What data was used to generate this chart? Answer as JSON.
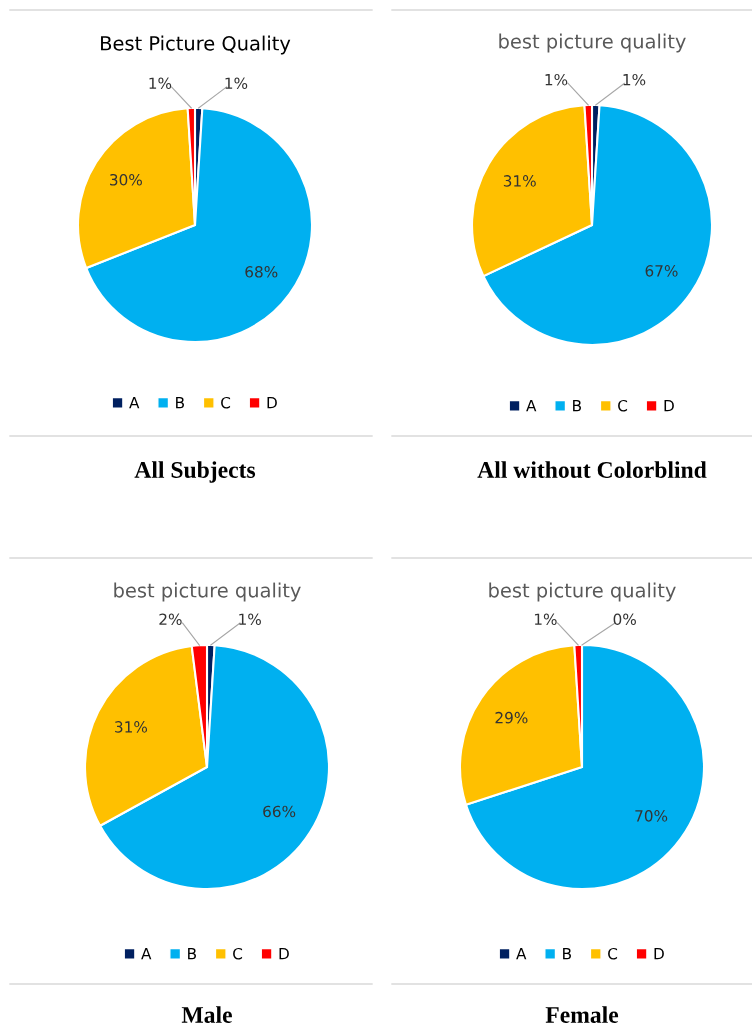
{
  "chart_data": [
    {
      "type": "pie",
      "title": "Best Picture Quality",
      "categories": [
        "A",
        "B",
        "C",
        "D"
      ],
      "values": [
        1,
        68,
        30,
        1
      ],
      "value_labels": [
        "1%",
        "68%",
        "30%",
        "1%"
      ],
      "colors": [
        "#002060",
        "#00b0f0",
        "#ffc000",
        "#ff0000"
      ],
      "legend": "bottom",
      "annotations": [
        "All Subjects"
      ]
    },
    {
      "type": "pie",
      "title": "best picture quality",
      "categories": [
        "A",
        "B",
        "C",
        "D"
      ],
      "values": [
        1,
        67,
        31,
        1
      ],
      "value_labels": [
        "1%",
        "67%",
        "31%",
        "1%"
      ],
      "colors": [
        "#002060",
        "#00b0f0",
        "#ffc000",
        "#ff0000"
      ],
      "legend": "bottom",
      "annotations": [
        "All without Colorblind"
      ]
    },
    {
      "type": "pie",
      "title": "best picture quality",
      "categories": [
        "A",
        "B",
        "C",
        "D"
      ],
      "values": [
        1,
        66,
        31,
        2
      ],
      "value_labels": [
        "1%",
        "66%",
        "31%",
        "2%"
      ],
      "colors": [
        "#002060",
        "#00b0f0",
        "#ffc000",
        "#ff0000"
      ],
      "legend": "bottom",
      "annotations": [
        "Male"
      ]
    },
    {
      "type": "pie",
      "title": "best picture quality",
      "categories": [
        "A",
        "B",
        "C",
        "D"
      ],
      "values": [
        0,
        70,
        29,
        1
      ],
      "value_labels": [
        "0%",
        "70%",
        "29%",
        "1%"
      ],
      "colors": [
        "#002060",
        "#00b0f0",
        "#ffc000",
        "#ff0000"
      ],
      "legend": "bottom",
      "annotations": [
        "Female"
      ]
    }
  ]
}
